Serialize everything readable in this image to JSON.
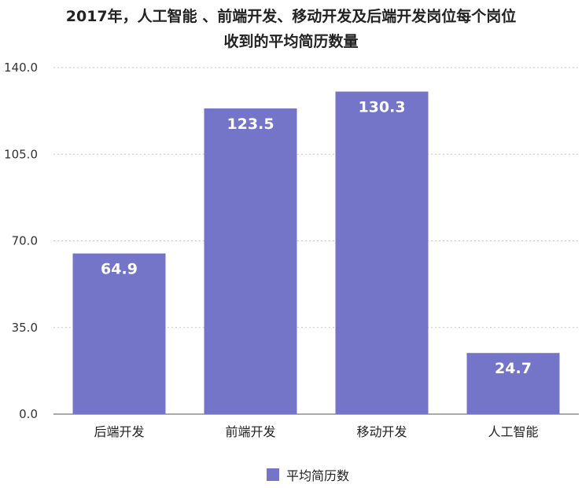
{
  "chart_data": {
    "type": "bar",
    "title_lines": [
      "2017年，人工智能 、前端开发、移动开发及后端开发岗位每个岗位",
      "收到的平均简历数量"
    ],
    "categories": [
      "后端开发",
      "前端开发",
      "移动开发",
      "人工智能"
    ],
    "series": [
      {
        "name": "平均简历数",
        "values": [
          64.9,
          123.5,
          130.3,
          24.7
        ]
      }
    ],
    "data_labels": [
      "64.9",
      "123.5",
      "130.3",
      "24.7"
    ],
    "y_ticks": [
      "0.0",
      "35.0",
      "70.0",
      "105.0",
      "140.0"
    ],
    "y_tick_values": [
      0,
      35,
      70,
      105,
      140
    ],
    "ylim": [
      0,
      140
    ],
    "grid": true,
    "legend_position": "bottom",
    "bar_color": "#7474c8"
  }
}
